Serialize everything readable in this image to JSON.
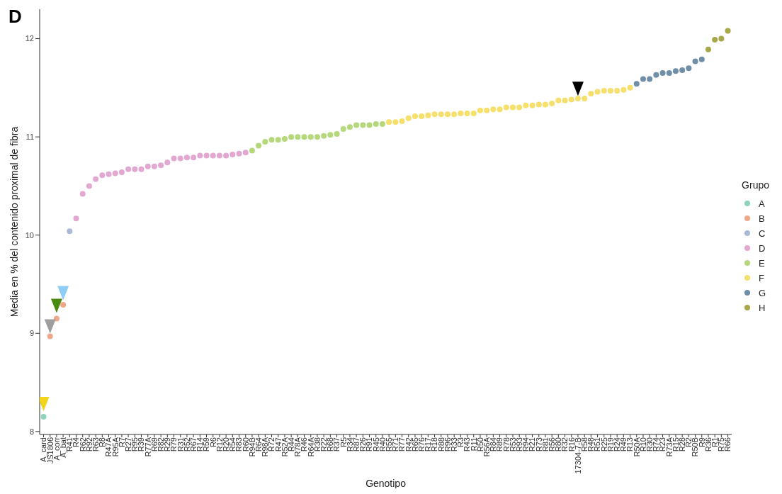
{
  "chart_data": {
    "type": "scatter",
    "title": "D",
    "xlabel": "Genotipo",
    "ylabel": "Media en % del contenido proximal de fibra",
    "legend_title": "Grupo",
    "legend": "right",
    "grid": false,
    "marker": "circle",
    "categories": [
      "A_card",
      "JS1806",
      "A_corr",
      "A_bat",
      "R41",
      "R4",
      "R62",
      "R92",
      "R63",
      "R8",
      "R47A",
      "R95A",
      "R7",
      "R27",
      "R95",
      "R39",
      "R77A",
      "R69",
      "R82",
      "R29",
      "R79",
      "R31",
      "R52",
      "R67",
      "R14",
      "R59",
      "R6",
      "R12",
      "R20",
      "R54",
      "R83",
      "R60",
      "R94B",
      "R64",
      "R98A",
      "R72",
      "R47",
      "R52A",
      "R44",
      "R78A",
      "R46",
      "R64A",
      "R38",
      "R22",
      "R68",
      "R37",
      "R5",
      "R34",
      "R87",
      "R26",
      "R91",
      "R45",
      "R40",
      "R55",
      "R71",
      "R77",
      "R42",
      "R65",
      "R76",
      "R17",
      "R18",
      "R88",
      "R96",
      "R33",
      "R3",
      "R43",
      "R11",
      "R50",
      "R56A",
      "R84",
      "R89",
      "R78",
      "R53",
      "R93",
      "R94",
      "R21",
      "R73",
      "R81",
      "R56",
      "R80",
      "R32",
      "R16",
      "17304-7-B",
      "R58",
      "R48",
      "R51",
      "R25",
      "R19",
      "R24",
      "R49",
      "R13",
      "R50A",
      "R10",
      "R30",
      "R74",
      "R23",
      "R73A",
      "R15",
      "R28",
      "R2",
      "R50B",
      "R9",
      "R36",
      "R1",
      "R75",
      "R66"
    ],
    "ylim": [
      7.97,
      12.3
    ],
    "yticks": [
      8,
      9,
      10,
      11,
      12
    ],
    "series": [
      {
        "name": "A",
        "color": "#8fd3bf",
        "values": [
          8.15,
          null,
          null,
          null,
          null,
          null,
          null,
          null,
          null,
          null,
          null,
          null,
          null,
          null,
          null,
          null,
          null,
          null,
          null,
          null,
          null,
          null,
          null,
          null,
          null,
          null,
          null,
          null,
          null,
          null,
          null,
          null,
          null,
          null,
          null,
          null,
          null,
          null,
          null,
          null,
          null,
          null,
          null,
          null,
          null,
          null,
          null,
          null,
          null,
          null,
          null,
          null,
          null,
          null,
          null,
          null,
          null,
          null,
          null,
          null,
          null,
          null,
          null,
          null,
          null,
          null,
          null,
          null,
          null,
          null,
          null,
          null,
          null,
          null,
          null,
          null,
          null,
          null,
          null,
          null,
          null,
          null,
          null,
          null,
          null,
          null,
          null,
          null,
          null,
          null,
          null,
          null,
          null,
          null,
          null,
          null,
          null,
          null,
          null,
          null,
          null,
          null,
          null,
          null,
          null,
          null
        ]
      },
      {
        "name": "B",
        "color": "#f0a88a",
        "values": [
          null,
          8.97,
          9.15,
          9.29,
          null,
          null,
          null,
          null,
          null,
          null,
          null,
          null,
          null,
          null,
          null,
          null,
          null,
          null,
          null,
          null,
          null,
          null,
          null,
          null,
          null,
          null,
          null,
          null,
          null,
          null,
          null,
          null,
          null,
          null,
          null,
          null,
          null,
          null,
          null,
          null,
          null,
          null,
          null,
          null,
          null,
          null,
          null,
          null,
          null,
          null,
          null,
          null,
          null,
          null,
          null,
          null,
          null,
          null,
          null,
          null,
          null,
          null,
          null,
          null,
          null,
          null,
          null,
          null,
          null,
          null,
          null,
          null,
          null,
          null,
          null,
          null,
          null,
          null,
          null,
          null,
          null,
          null,
          null,
          null,
          null,
          null,
          null,
          null,
          null,
          null,
          null,
          null,
          null,
          null,
          null,
          null,
          null,
          null,
          null,
          null,
          null,
          null,
          null,
          null,
          null,
          null
        ]
      },
      {
        "name": "C",
        "color": "#a9b9d6",
        "values": [
          null,
          null,
          null,
          null,
          10.04,
          null,
          null,
          null,
          null,
          null,
          null,
          null,
          null,
          null,
          null,
          null,
          null,
          null,
          null,
          null,
          null,
          null,
          null,
          null,
          null,
          null,
          null,
          null,
          null,
          null,
          null,
          null,
          null,
          null,
          null,
          null,
          null,
          null,
          null,
          null,
          null,
          null,
          null,
          null,
          null,
          null,
          null,
          null,
          null,
          null,
          null,
          null,
          null,
          null,
          null,
          null,
          null,
          null,
          null,
          null,
          null,
          null,
          null,
          null,
          null,
          null,
          null,
          null,
          null,
          null,
          null,
          null,
          null,
          null,
          null,
          null,
          null,
          null,
          null,
          null,
          null,
          null,
          null,
          null,
          null,
          null,
          null,
          null,
          null,
          null,
          null,
          null,
          null,
          null,
          null,
          null,
          null,
          null,
          null,
          null,
          null,
          null,
          null,
          null,
          null,
          null
        ]
      },
      {
        "name": "D",
        "color": "#e3a8d2",
        "values": [
          null,
          null,
          null,
          null,
          null,
          10.17,
          10.42,
          10.5,
          10.57,
          10.61,
          10.62,
          10.63,
          10.64,
          10.67,
          10.67,
          10.67,
          10.7,
          10.7,
          10.71,
          10.74,
          10.78,
          10.78,
          10.79,
          10.79,
          10.81,
          10.81,
          10.81,
          10.81,
          10.81,
          10.82,
          10.83,
          10.84,
          null,
          null,
          null,
          null,
          null,
          null,
          null,
          null,
          null,
          null,
          null,
          null,
          null,
          null,
          null,
          null,
          null,
          null,
          null,
          null,
          null,
          null,
          null,
          null,
          null,
          null,
          null,
          null,
          null,
          null,
          null,
          null,
          null,
          null,
          null,
          null,
          null,
          null,
          null,
          null,
          null,
          null,
          null,
          null,
          null,
          null,
          null,
          null,
          null,
          null,
          null,
          null,
          null,
          null,
          null,
          null,
          null,
          null,
          null,
          null,
          null,
          null,
          null,
          null,
          null,
          null,
          null,
          null,
          null,
          null,
          null,
          null,
          null,
          null
        ]
      },
      {
        "name": "E",
        "color": "#b5d97a",
        "values": [
          null,
          null,
          null,
          null,
          null,
          null,
          null,
          null,
          null,
          null,
          null,
          null,
          null,
          null,
          null,
          null,
          null,
          null,
          null,
          null,
          null,
          null,
          null,
          null,
          null,
          null,
          null,
          null,
          null,
          null,
          null,
          null,
          10.86,
          10.91,
          10.95,
          10.97,
          10.97,
          10.98,
          11.0,
          11.0,
          11.0,
          11.0,
          11.0,
          11.01,
          11.02,
          11.03,
          11.08,
          11.1,
          11.12,
          11.12,
          11.12,
          11.13,
          11.13,
          null,
          null,
          null,
          null,
          null,
          null,
          null,
          null,
          null,
          null,
          null,
          null,
          null,
          null,
          null,
          null,
          null,
          null,
          null,
          null,
          null,
          null,
          null,
          null,
          null,
          null,
          null,
          null,
          null,
          null,
          null,
          null,
          null,
          null,
          null,
          null,
          null,
          null,
          null,
          null,
          null,
          null,
          null,
          null,
          null,
          null,
          null,
          null,
          null,
          null,
          null,
          null,
          null
        ]
      },
      {
        "name": "F",
        "color": "#f7df6b",
        "values": [
          null,
          null,
          null,
          null,
          null,
          null,
          null,
          null,
          null,
          null,
          null,
          null,
          null,
          null,
          null,
          null,
          null,
          null,
          null,
          null,
          null,
          null,
          null,
          null,
          null,
          null,
          null,
          null,
          null,
          null,
          null,
          null,
          null,
          null,
          null,
          null,
          null,
          null,
          null,
          null,
          null,
          null,
          null,
          null,
          null,
          null,
          null,
          null,
          null,
          null,
          null,
          null,
          null,
          11.15,
          11.15,
          11.16,
          11.19,
          11.21,
          11.21,
          11.22,
          11.23,
          11.23,
          11.23,
          11.23,
          11.24,
          11.24,
          11.24,
          11.27,
          11.27,
          11.28,
          11.28,
          11.3,
          11.3,
          11.3,
          11.32,
          11.32,
          11.33,
          11.33,
          11.34,
          11.37,
          11.37,
          11.38,
          11.39,
          11.39,
          11.44,
          11.46,
          11.47,
          11.47,
          11.47,
          11.48,
          11.5,
          null,
          null,
          null,
          null,
          null,
          null,
          null,
          null,
          null,
          null,
          null,
          null,
          null,
          null,
          null
        ]
      },
      {
        "name": "G",
        "color": "#6f8ea8",
        "values": [
          null,
          null,
          null,
          null,
          null,
          null,
          null,
          null,
          null,
          null,
          null,
          null,
          null,
          null,
          null,
          null,
          null,
          null,
          null,
          null,
          null,
          null,
          null,
          null,
          null,
          null,
          null,
          null,
          null,
          null,
          null,
          null,
          null,
          null,
          null,
          null,
          null,
          null,
          null,
          null,
          null,
          null,
          null,
          null,
          null,
          null,
          null,
          null,
          null,
          null,
          null,
          null,
          null,
          null,
          null,
          null,
          null,
          null,
          null,
          null,
          null,
          null,
          null,
          null,
          null,
          null,
          null,
          null,
          null,
          null,
          null,
          null,
          null,
          null,
          null,
          null,
          null,
          null,
          null,
          null,
          null,
          null,
          null,
          null,
          null,
          null,
          null,
          null,
          null,
          null,
          null,
          11.54,
          11.59,
          11.59,
          11.63,
          11.65,
          11.65,
          11.67,
          11.68,
          11.7,
          11.77,
          11.79,
          null,
          null,
          null,
          null
        ]
      },
      {
        "name": "H",
        "color": "#a8a84a",
        "values": [
          null,
          null,
          null,
          null,
          null,
          null,
          null,
          null,
          null,
          null,
          null,
          null,
          null,
          null,
          null,
          null,
          null,
          null,
          null,
          null,
          null,
          null,
          null,
          null,
          null,
          null,
          null,
          null,
          null,
          null,
          null,
          null,
          null,
          null,
          null,
          null,
          null,
          null,
          null,
          null,
          null,
          null,
          null,
          null,
          null,
          null,
          null,
          null,
          null,
          null,
          null,
          null,
          null,
          null,
          null,
          null,
          null,
          null,
          null,
          null,
          null,
          null,
          null,
          null,
          null,
          null,
          null,
          null,
          null,
          null,
          null,
          null,
          null,
          null,
          null,
          null,
          null,
          null,
          null,
          null,
          null,
          null,
          null,
          null,
          null,
          null,
          null,
          null,
          null,
          null,
          null,
          null,
          null,
          null,
          null,
          null,
          null,
          null,
          null,
          null,
          null,
          null,
          11.89,
          11.99,
          12.0,
          12.08
        ]
      },
      {
        "marker": "triangle",
        "colors": [
          "#f2d41c",
          "#9e9e9e",
          "#4a8a10",
          "#8ecdf5",
          null,
          null,
          null,
          null,
          null,
          null,
          null,
          null,
          null,
          null,
          null,
          null,
          null,
          null,
          null,
          null,
          null,
          null,
          null,
          null,
          null,
          null,
          null,
          null,
          null,
          null,
          null,
          null,
          null,
          null,
          null,
          null,
          null,
          null,
          null,
          null,
          null,
          null,
          null,
          null,
          null,
          null,
          null,
          null,
          null,
          null,
          null,
          null,
          null,
          null,
          null,
          null,
          null,
          null,
          null,
          null,
          null,
          null,
          null,
          null,
          null,
          null,
          null,
          null,
          null,
          null,
          null,
          null,
          null,
          null,
          null,
          null,
          null,
          null,
          null,
          null,
          null,
          null,
          "#000000",
          null,
          null,
          null,
          null,
          null,
          null,
          null,
          null,
          null,
          null,
          null,
          null,
          null,
          null,
          null,
          null,
          null,
          null,
          null,
          null,
          null,
          null,
          null
        ],
        "values": [
          8.28,
          9.07,
          9.28,
          9.41,
          null,
          null,
          null,
          null,
          null,
          null,
          null,
          null,
          null,
          null,
          null,
          null,
          null,
          null,
          null,
          null,
          null,
          null,
          null,
          null,
          null,
          null,
          null,
          null,
          null,
          null,
          null,
          null,
          null,
          null,
          null,
          null,
          null,
          null,
          null,
          null,
          null,
          null,
          null,
          null,
          null,
          null,
          null,
          null,
          null,
          null,
          null,
          null,
          null,
          null,
          null,
          null,
          null,
          null,
          null,
          null,
          null,
          null,
          null,
          null,
          null,
          null,
          null,
          null,
          null,
          null,
          null,
          null,
          null,
          null,
          null,
          null,
          null,
          null,
          null,
          null,
          null,
          null,
          11.49,
          null,
          null,
          null,
          null,
          null,
          null,
          null,
          null,
          null,
          null,
          null,
          null,
          null,
          null,
          null,
          null,
          null,
          null,
          null,
          null,
          null,
          null,
          null
        ]
      }
    ]
  }
}
